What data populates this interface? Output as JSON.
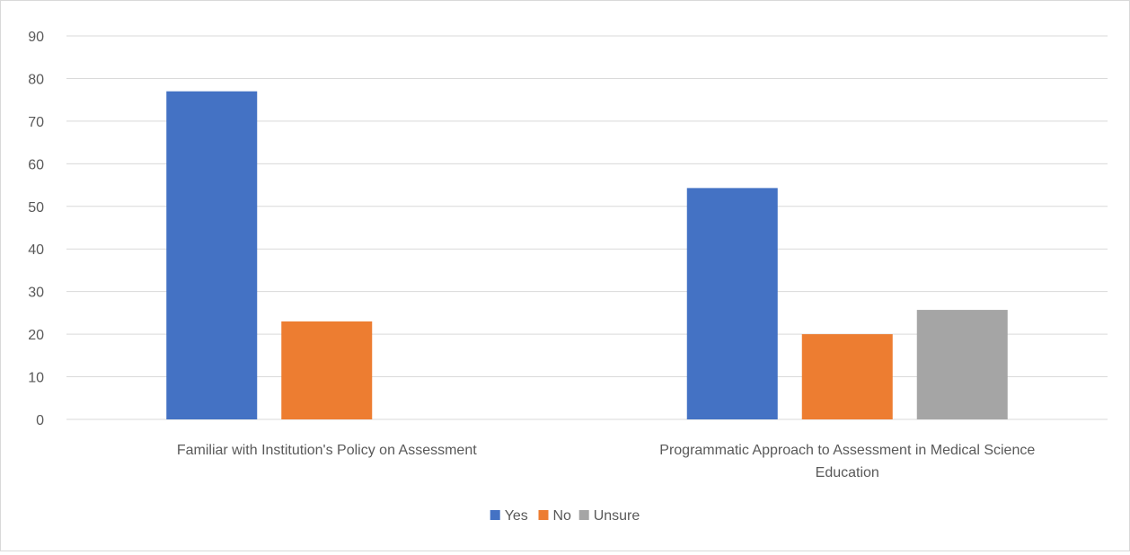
{
  "chart_data": {
    "type": "bar",
    "categories": [
      [
        "Familiar with Institution's Policy on Assessment"
      ],
      [
        "Programmatic Approach to Assessment in Medical Science",
        "Education"
      ]
    ],
    "series": [
      {
        "name": "Yes",
        "color": "#4472C4",
        "values": [
          77,
          54.3
        ]
      },
      {
        "name": "No",
        "color": "#ED7D31",
        "values": [
          23,
          20
        ]
      },
      {
        "name": "Unsure",
        "color": "#A5A5A5",
        "values": [
          null,
          25.7
        ]
      }
    ],
    "ylim": [
      0,
      90
    ],
    "yticks": [
      0,
      10,
      20,
      30,
      40,
      50,
      60,
      70,
      80,
      90
    ],
    "grid": true,
    "legend": "bottom",
    "title": "",
    "xlabel": "",
    "ylabel": ""
  }
}
